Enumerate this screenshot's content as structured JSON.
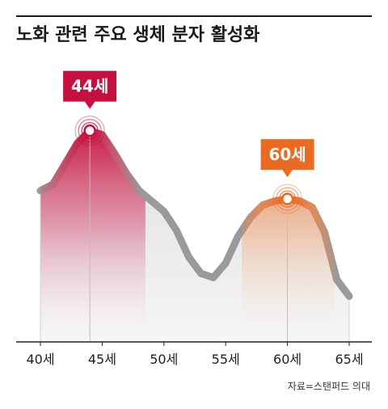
{
  "chart_data": {
    "type": "area",
    "title": "노화 관련 주요 생체 분자 활성화",
    "x_tick_labels": [
      "40세",
      "45세",
      "50세",
      "55세",
      "60세",
      "65세"
    ],
    "x_ticks": [
      40,
      45,
      50,
      55,
      60,
      65
    ],
    "xlim": [
      40,
      65
    ],
    "ylim": [
      0,
      100
    ],
    "grid": false,
    "legend": "none",
    "series": [
      {
        "x": [
          40,
          41,
          42,
          43,
          44,
          45,
          46,
          47,
          48,
          49,
          50,
          51,
          52,
          53,
          54,
          55,
          56,
          57,
          58,
          59,
          60,
          61,
          62,
          63,
          64,
          65
        ],
        "values": [
          68,
          71,
          81,
          91,
          97,
          95,
          86,
          76,
          68,
          63,
          58,
          49,
          36,
          28,
          26,
          33,
          46,
          55,
          61,
          63,
          64,
          63,
          60,
          48,
          25,
          17
        ]
      }
    ],
    "annotations": [
      {
        "label": "44세",
        "x": 44,
        "y": 97,
        "color": "#c8103e"
      },
      {
        "label": "60세",
        "x": 60,
        "y": 64,
        "color": "#ea6a22"
      }
    ],
    "colors": {
      "line": "#9a9a9a",
      "peak1": "#c8103e",
      "peak2": "#ea6a22",
      "fill": "#e9e9e9",
      "axis": "#222222"
    }
  },
  "source": "자료=스탠퍼드 의대"
}
